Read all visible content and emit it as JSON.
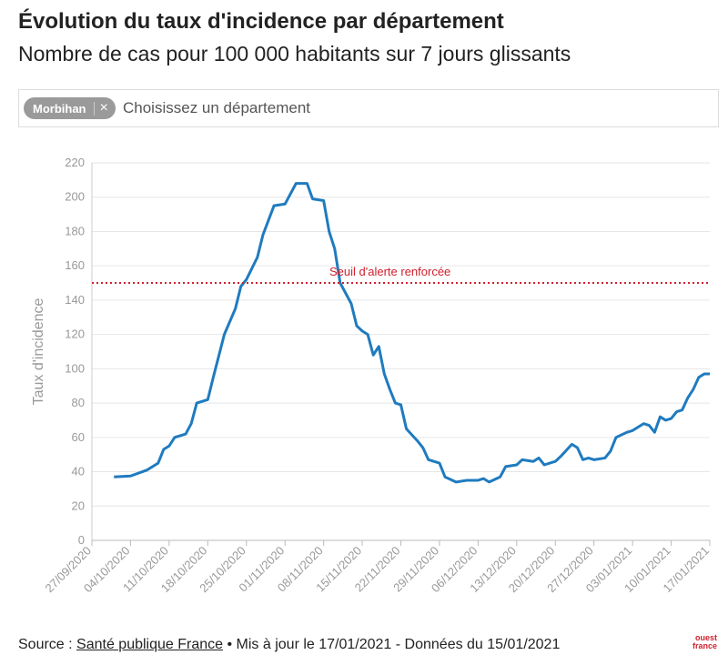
{
  "chart_data": {
    "type": "line",
    "title": "Évolution du taux d'incidence par département",
    "subtitle": "Nombre de cas pour 100 000 habitants sur 7 jours glissants",
    "ylabel": "Taux d'incidence",
    "x": [
      "01/10/2020",
      "04/10/2020",
      "07/10/2020",
      "09/10/2020",
      "10/10/2020",
      "11/10/2020",
      "12/10/2020",
      "14/10/2020",
      "15/10/2020",
      "16/10/2020",
      "18/10/2020",
      "19/10/2020",
      "21/10/2020",
      "23/10/2020",
      "24/10/2020",
      "25/10/2020",
      "27/10/2020",
      "28/10/2020",
      "30/10/2020",
      "01/11/2020",
      "03/11/2020",
      "05/11/2020",
      "06/11/2020",
      "08/11/2020",
      "09/11/2020",
      "10/11/2020",
      "11/11/2020",
      "13/11/2020",
      "14/11/2020",
      "15/11/2020",
      "16/11/2020",
      "17/11/2020",
      "18/11/2020",
      "19/11/2020",
      "20/11/2020",
      "21/11/2020",
      "22/11/2020",
      "23/11/2020",
      "25/11/2020",
      "26/11/2020",
      "27/11/2020",
      "29/11/2020",
      "30/11/2020",
      "02/12/2020",
      "04/12/2020",
      "06/12/2020",
      "07/12/2020",
      "08/12/2020",
      "10/12/2020",
      "11/12/2020",
      "13/12/2020",
      "14/12/2020",
      "16/12/2020",
      "17/12/2020",
      "18/12/2020",
      "20/12/2020",
      "21/12/2020",
      "23/12/2020",
      "24/12/2020",
      "25/12/2020",
      "26/12/2020",
      "27/12/2020",
      "29/12/2020",
      "30/12/2020",
      "31/12/2020",
      "02/01/2021",
      "03/01/2021",
      "04/01/2021",
      "05/01/2021",
      "06/01/2021",
      "07/01/2021",
      "08/01/2021",
      "09/01/2021",
      "10/01/2021",
      "11/01/2021",
      "12/01/2021",
      "13/01/2021",
      "14/01/2021",
      "15/01/2021",
      "16/01/2021",
      "17/01/2021"
    ],
    "series": [
      {
        "name": "Morbihan",
        "color": "#1f7bbf",
        "values": [
          37,
          37.5,
          41,
          45,
          53,
          55,
          60,
          62,
          68,
          80,
          82,
          95,
          120,
          135,
          148,
          152,
          165,
          178,
          195,
          196,
          208,
          208,
          199,
          198,
          180,
          170,
          150,
          138,
          125,
          122,
          120,
          108,
          113,
          97,
          88,
          80,
          79,
          65,
          58,
          54,
          47,
          45,
          37,
          34,
          35,
          35,
          36,
          34,
          37,
          43,
          44,
          47,
          46,
          48,
          44,
          46,
          49,
          56,
          54,
          47,
          48,
          47,
          48,
          52,
          60,
          63,
          64,
          66,
          68,
          67,
          63,
          72,
          70,
          71,
          75,
          76,
          83,
          88,
          95,
          97,
          97
        ]
      }
    ],
    "xlim": [
      "27/09/2020",
      "17/01/2021"
    ],
    "xticks": [
      "27/09/2020",
      "04/10/2020",
      "11/10/2020",
      "18/10/2020",
      "25/10/2020",
      "01/11/2020",
      "08/11/2020",
      "15/11/2020",
      "22/11/2020",
      "29/11/2020",
      "06/12/2020",
      "13/12/2020",
      "20/12/2020",
      "27/12/2020",
      "03/01/2021",
      "10/01/2021",
      "17/01/2021"
    ],
    "ylim": [
      0,
      220
    ],
    "yticks": [
      0,
      20,
      40,
      60,
      80,
      100,
      120,
      140,
      160,
      180,
      200,
      220
    ],
    "grid": true,
    "reference_line": {
      "value": 150,
      "label": "Seuil d'alerte renforcée",
      "color": "#d0202e"
    }
  },
  "filter": {
    "chip": "Morbihan",
    "remove": "×",
    "placeholder": "Choisissez un département"
  },
  "footer": {
    "source_prefix": "Source :",
    "source_link": "Santé publique France",
    "updated": "• Mis à jour le 17/01/2021 - Données du 15/01/2021",
    "logo_line1": "ouest",
    "logo_line2": "france"
  }
}
